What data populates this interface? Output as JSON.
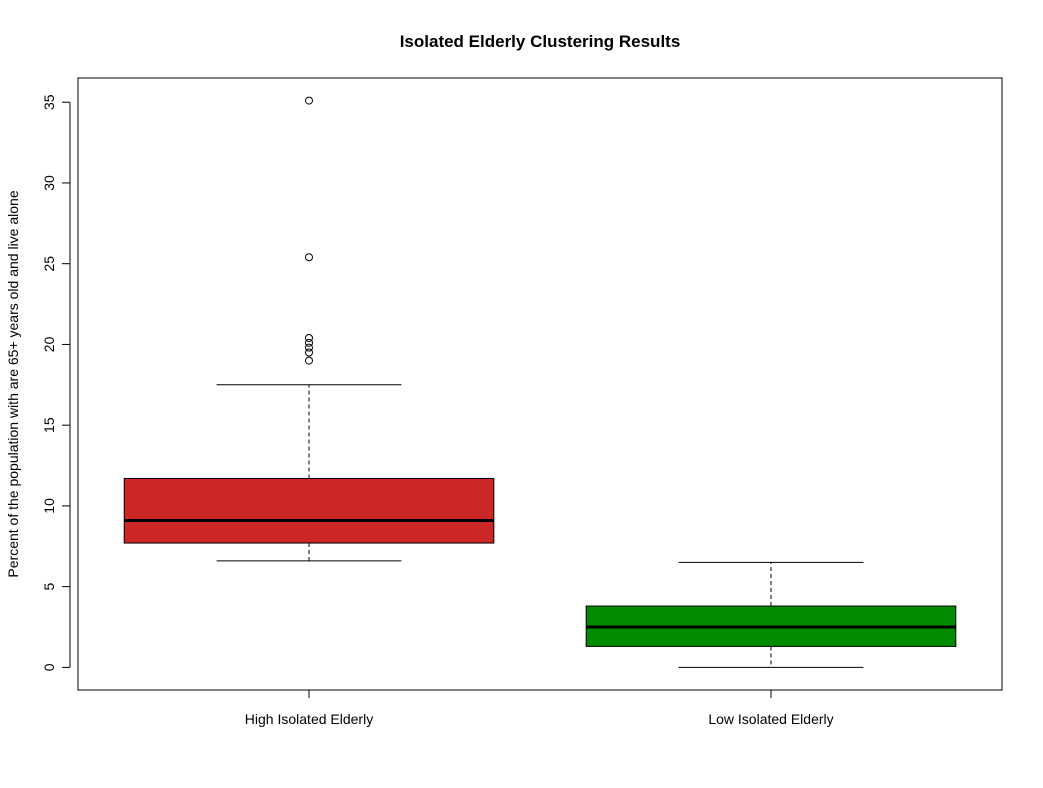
{
  "chart_data": {
    "type": "boxplot",
    "title": "Isolated Elderly Clustering Results",
    "xlabel": "",
    "ylabel": "Percent of the population with are 65+ years old and live alone",
    "ylim": [
      -1.4,
      36.5
    ],
    "yticks": [
      0,
      5,
      10,
      15,
      20,
      25,
      30,
      35
    ],
    "grid": false,
    "groups": [
      {
        "name": "High Isolated Elderly",
        "color": "#cd2626",
        "whisker_low": 6.6,
        "q1": 7.7,
        "median": 9.1,
        "q3": 11.7,
        "whisker_high": 17.5,
        "outliers": [
          19.0,
          19.5,
          19.8,
          20.1,
          20.4,
          25.4,
          35.1
        ]
      },
      {
        "name": "Low Isolated Elderly",
        "color": "#008b00",
        "whisker_low": 0.0,
        "q1": 1.3,
        "median": 2.5,
        "q3": 3.8,
        "whisker_high": 6.5,
        "outliers": []
      }
    ]
  }
}
